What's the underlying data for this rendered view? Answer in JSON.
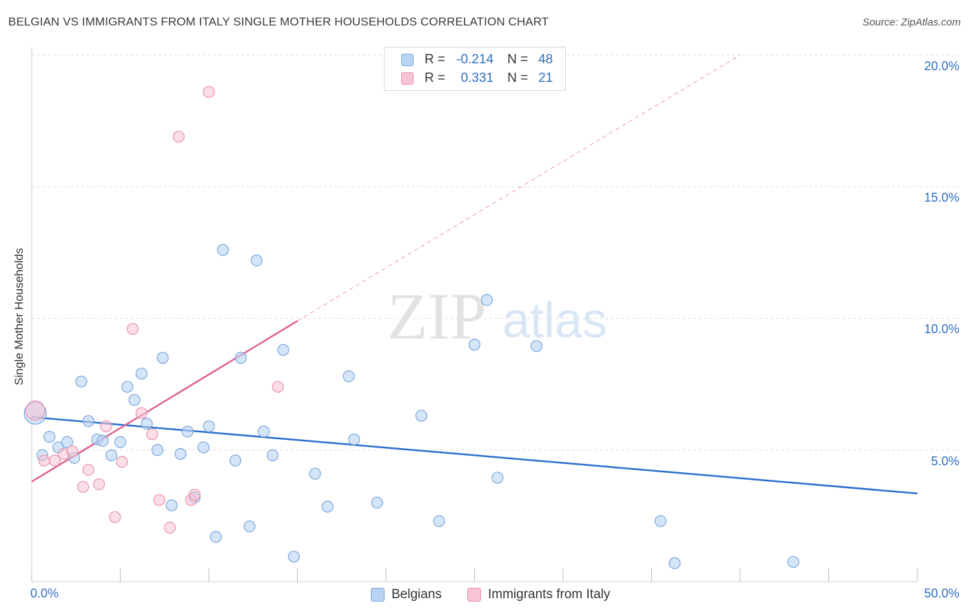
{
  "header": {
    "title": "BELGIAN VS IMMIGRANTS FROM ITALY SINGLE MOTHER HOUSEHOLDS CORRELATION CHART",
    "source": "Source: ZipAtlas.com"
  },
  "watermark": {
    "zip": "ZIP",
    "atlas": "atlas"
  },
  "legend": {
    "rows": [
      {
        "r_label": "R =",
        "r_value": "-0.214",
        "n_label": "N =",
        "n_value": "48"
      },
      {
        "r_label": "R =",
        "r_value": "0.331",
        "n_label": "N =",
        "n_value": "21"
      }
    ]
  },
  "bottom_legend": {
    "belgians": "Belgians",
    "italy": "Immigrants from Italy"
  },
  "colors": {
    "belgian_fill": "#b9d3f3",
    "belgian_stroke": "#7aa6dc",
    "belgian_line": "#2a6fcc",
    "italy_fill": "#f8c3d3",
    "italy_stroke": "#e892ad",
    "italy_line": "#e0628e",
    "axis_text": "#2f6fc4",
    "grid": "#dddddd"
  },
  "chart_data": {
    "type": "scatter",
    "title": "BELGIAN VS IMMIGRANTS FROM ITALY SINGLE MOTHER HOUSEHOLDS CORRELATION CHART",
    "xlabel": "",
    "ylabel": "Single Mother Households",
    "xlim": [
      0,
      50
    ],
    "ylim": [
      0,
      20.5
    ],
    "x_tick_labels": [
      "0.0%",
      "50.0%"
    ],
    "y_ticks": [
      5,
      10,
      15,
      20
    ],
    "y_tick_labels": [
      "5.0%",
      "10.0%",
      "15.0%",
      "20.0%"
    ],
    "grid": true,
    "series": [
      {
        "name": "Belgians",
        "r": -0.214,
        "n": 48,
        "points": [
          [
            0.2,
            6.4
          ],
          [
            0.6,
            4.8
          ],
          [
            1.0,
            5.5
          ],
          [
            1.5,
            5.1
          ],
          [
            2.0,
            5.3
          ],
          [
            2.4,
            4.7
          ],
          [
            2.8,
            7.6
          ],
          [
            3.2,
            6.1
          ],
          [
            3.7,
            5.4
          ],
          [
            4.0,
            5.35
          ],
          [
            4.5,
            4.8
          ],
          [
            5.0,
            5.3
          ],
          [
            5.4,
            7.4
          ],
          [
            5.8,
            6.9
          ],
          [
            6.2,
            7.9
          ],
          [
            6.5,
            6.0
          ],
          [
            7.1,
            5.0
          ],
          [
            7.4,
            8.5
          ],
          [
            7.9,
            2.9
          ],
          [
            8.4,
            4.85
          ],
          [
            8.8,
            5.7
          ],
          [
            9.2,
            3.2
          ],
          [
            9.7,
            5.1
          ],
          [
            10.0,
            5.9
          ],
          [
            10.4,
            1.7
          ],
          [
            10.8,
            12.6
          ],
          [
            11.5,
            4.6
          ],
          [
            11.8,
            8.5
          ],
          [
            12.3,
            2.1
          ],
          [
            12.7,
            12.2
          ],
          [
            13.1,
            5.7
          ],
          [
            13.6,
            4.8
          ],
          [
            14.2,
            8.8
          ],
          [
            14.8,
            0.95
          ],
          [
            16.0,
            4.1
          ],
          [
            16.7,
            2.85
          ],
          [
            17.9,
            7.8
          ],
          [
            18.2,
            5.4
          ],
          [
            19.5,
            3.0
          ],
          [
            22.0,
            6.3
          ],
          [
            23.0,
            2.3
          ],
          [
            25.0,
            9.0
          ],
          [
            25.7,
            10.7
          ],
          [
            26.3,
            3.95
          ],
          [
            28.5,
            8.95
          ],
          [
            35.5,
            2.3
          ],
          [
            36.3,
            0.7
          ],
          [
            43.0,
            0.75
          ]
        ],
        "trend": {
          "x": [
            0,
            50
          ],
          "y": [
            6.25,
            3.35
          ]
        }
      },
      {
        "name": "Immigrants from Italy",
        "r": 0.331,
        "n": 21,
        "points": [
          [
            0.2,
            6.5
          ],
          [
            0.7,
            4.6
          ],
          [
            1.3,
            4.6
          ],
          [
            1.8,
            4.85
          ],
          [
            2.3,
            4.95
          ],
          [
            2.9,
            3.6
          ],
          [
            3.2,
            4.25
          ],
          [
            3.8,
            3.7
          ],
          [
            4.2,
            5.9
          ],
          [
            4.7,
            2.45
          ],
          [
            5.1,
            4.55
          ],
          [
            5.7,
            9.6
          ],
          [
            6.2,
            6.4
          ],
          [
            6.8,
            5.6
          ],
          [
            7.2,
            3.1
          ],
          [
            7.8,
            2.05
          ],
          [
            8.3,
            16.9
          ],
          [
            9.0,
            3.1
          ],
          [
            9.2,
            3.3
          ],
          [
            10.0,
            18.6
          ],
          [
            13.9,
            7.4
          ]
        ],
        "trend": {
          "x": [
            0,
            15
          ],
          "y": [
            3.8,
            9.9
          ]
        },
        "trend_extension": {
          "x": [
            15,
            40
          ],
          "y": [
            9.9,
            20.0
          ]
        }
      }
    ]
  }
}
